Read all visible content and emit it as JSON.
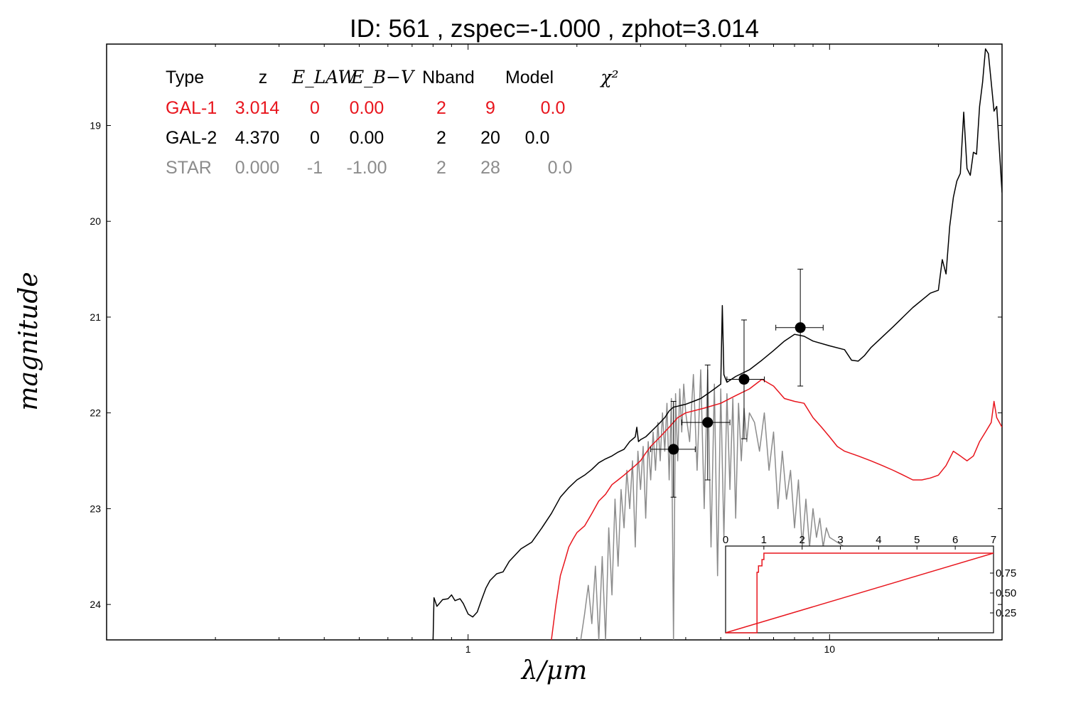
{
  "title": "ID:  561   , zspec=-1.000 , zphot=3.014",
  "chart_data": {
    "type": "line",
    "xlabel": "λ/μm",
    "ylabel": "magnitude",
    "xscale": "log",
    "xlim": [
      0.1,
      30
    ],
    "ylim": [
      24.37,
      18.15
    ],
    "x_ticks": [
      1,
      10
    ],
    "y_ticks": [
      19,
      20,
      21,
      22,
      23,
      24
    ],
    "colors": {
      "gal1": "#e8151d",
      "gal2": "#000000",
      "star": "#8c8c8c"
    },
    "table": {
      "headers": [
        "Type",
        "z",
        "E_LAW",
        "E_B−V",
        "Nband",
        "Model",
        "χ²"
      ],
      "rows": [
        {
          "type": "GAL-1",
          "z": "3.014",
          "elaw": "0",
          "ebv": "0.00",
          "nband": "2",
          "model": "9",
          "chi2": "0.0",
          "color": "#e8151d"
        },
        {
          "type": "GAL-2",
          "z": "4.370",
          "elaw": "0",
          "ebv": "0.00",
          "nband": "2",
          "model": "20",
          "chi2": "0.0",
          "color": "#000000"
        },
        {
          "type": "STAR",
          "z": "0.000",
          "elaw": "-1",
          "ebv": "-1.00",
          "nband": "2",
          "model": "28",
          "chi2": "0.0",
          "color": "#8c8c8c"
        }
      ]
    },
    "points": [
      {
        "x": 3.7,
        "y": 22.38,
        "xerr": [
          3.2,
          4.25
        ],
        "yerr": [
          21.88,
          22.88
        ]
      },
      {
        "x": 4.6,
        "y": 22.1,
        "xerr": [
          3.9,
          5.3
        ],
        "yerr": [
          21.5,
          22.7
        ]
      },
      {
        "x": 5.8,
        "y": 21.65,
        "xerr": [
          5.2,
          6.6
        ],
        "yerr": [
          21.03,
          22.27
        ]
      },
      {
        "x": 8.3,
        "y": 21.11,
        "xerr": [
          7.1,
          9.6
        ],
        "yerr": [
          20.5,
          21.72
        ]
      }
    ],
    "series": [
      {
        "id": "gal2",
        "x": [
          0.8,
          0.805,
          0.82,
          0.85,
          0.88,
          0.9,
          0.92,
          0.95,
          0.97,
          1.0,
          1.03,
          1.06,
          1.09,
          1.12,
          1.15,
          1.2,
          1.25,
          1.3,
          1.4,
          1.5,
          1.6,
          1.7,
          1.8,
          1.9,
          2.0,
          2.1,
          2.2,
          2.3,
          2.4,
          2.5,
          2.6,
          2.7,
          2.8,
          2.9,
          2.93,
          2.96,
          3.0,
          3.1,
          3.2,
          3.3,
          3.4,
          3.5,
          3.6,
          3.7,
          3.8,
          3.9,
          4.0,
          4.2,
          4.4,
          4.6,
          4.8,
          5.0,
          5.05,
          5.1,
          5.2,
          5.5,
          6.0,
          6.5,
          7.0,
          7.5,
          8.0,
          8.5,
          9.0,
          10.0,
          11.0,
          11.5,
          12.0,
          12.5,
          13.0,
          15.0,
          17.0,
          19.0,
          20.0,
          20.5,
          21.0,
          21.5,
          22.0,
          22.5,
          23.0,
          23.5,
          24.0,
          24.5,
          25.0,
          25.5,
          26.0,
          26.5,
          27.0,
          27.5,
          28.0,
          28.5,
          29.0,
          30.0
        ],
        "y": [
          24.37,
          23.93,
          24.02,
          23.95,
          23.94,
          23.9,
          23.96,
          23.94,
          23.99,
          24.1,
          24.13,
          24.08,
          23.95,
          23.83,
          23.75,
          23.68,
          23.66,
          23.55,
          23.42,
          23.35,
          23.2,
          23.05,
          22.88,
          22.78,
          22.7,
          22.65,
          22.59,
          22.52,
          22.48,
          22.45,
          22.41,
          22.38,
          22.3,
          22.25,
          22.15,
          22.3,
          22.28,
          22.25,
          22.2,
          22.15,
          22.1,
          22.05,
          21.98,
          21.94,
          21.93,
          21.92,
          21.91,
          21.88,
          21.85,
          21.8,
          21.75,
          21.7,
          20.88,
          21.6,
          21.68,
          21.62,
          21.55,
          21.45,
          21.35,
          21.25,
          21.18,
          21.2,
          21.25,
          21.3,
          21.34,
          21.45,
          21.46,
          21.4,
          21.32,
          21.1,
          20.9,
          20.75,
          20.72,
          20.4,
          20.55,
          20.05,
          19.75,
          19.58,
          19.5,
          18.86,
          19.45,
          19.52,
          19.28,
          19.3,
          18.8,
          18.55,
          18.2,
          18.25,
          18.55,
          18.85,
          18.8,
          19.7
        ]
      },
      {
        "id": "gal1",
        "x": [
          1.7,
          1.75,
          1.8,
          1.85,
          1.9,
          1.95,
          2.0,
          2.1,
          2.2,
          2.3,
          2.4,
          2.5,
          2.6,
          2.7,
          2.8,
          2.9,
          3.0,
          3.1,
          3.2,
          3.4,
          3.6,
          3.8,
          4.0,
          4.5,
          5.0,
          5.5,
          6.0,
          6.5,
          7.0,
          7.5,
          8.0,
          8.5,
          9.0,
          9.5,
          10.0,
          10.5,
          11.0,
          12.0,
          13.0,
          14.0,
          15.0,
          16.0,
          17.0,
          18.0,
          19.0,
          20.0,
          21.0,
          22.0,
          23.0,
          24.0,
          25.0,
          26.0,
          27.0,
          28.0,
          28.5,
          29.0,
          30.0
        ],
        "y": [
          24.37,
          24.0,
          23.7,
          23.55,
          23.4,
          23.32,
          23.25,
          23.18,
          23.05,
          22.92,
          22.85,
          22.75,
          22.7,
          22.65,
          22.6,
          22.55,
          22.5,
          22.42,
          22.35,
          22.25,
          22.15,
          22.05,
          22.0,
          21.95,
          21.9,
          21.82,
          21.75,
          21.65,
          21.72,
          21.85,
          21.88,
          21.9,
          22.05,
          22.15,
          22.25,
          22.35,
          22.4,
          22.45,
          22.5,
          22.55,
          22.6,
          22.65,
          22.7,
          22.7,
          22.68,
          22.65,
          22.55,
          22.4,
          22.45,
          22.5,
          22.45,
          22.3,
          22.2,
          22.1,
          21.88,
          22.05,
          22.15
        ]
      },
      {
        "id": "star",
        "x": [
          2.05,
          2.1,
          2.15,
          2.2,
          2.25,
          2.3,
          2.35,
          2.4,
          2.45,
          2.5,
          2.55,
          2.6,
          2.65,
          2.7,
          2.75,
          2.8,
          2.85,
          2.9,
          2.95,
          3.0,
          3.05,
          3.1,
          3.15,
          3.2,
          3.25,
          3.3,
          3.35,
          3.4,
          3.45,
          3.5,
          3.55,
          3.6,
          3.65,
          3.7,
          3.75,
          3.8,
          3.85,
          3.9,
          3.95,
          4.0,
          4.1,
          4.2,
          4.3,
          4.4,
          4.5,
          4.6,
          4.7,
          4.8,
          4.9,
          5.0,
          5.1,
          5.2,
          5.3,
          5.4,
          5.5,
          5.6,
          5.7,
          5.8,
          5.9,
          6.0,
          6.2,
          6.4,
          6.6,
          6.8,
          7.0,
          7.2,
          7.4,
          7.6,
          7.8,
          8.0,
          8.2,
          8.4,
          8.6,
          8.8,
          9.0,
          9.2,
          9.4,
          9.6,
          9.8,
          10.0,
          10.5,
          11.0,
          11.5,
          12.0
        ],
        "y": [
          24.37,
          24.1,
          23.8,
          24.2,
          23.6,
          24.37,
          23.5,
          24.37,
          23.2,
          23.9,
          22.9,
          23.6,
          22.8,
          23.2,
          22.6,
          23.0,
          22.5,
          23.4,
          22.4,
          22.8,
          22.35,
          23.1,
          22.3,
          22.7,
          22.2,
          22.6,
          22.1,
          22.5,
          22.0,
          22.4,
          21.9,
          22.7,
          21.85,
          24.37,
          21.8,
          22.5,
          21.75,
          22.2,
          21.7,
          22.0,
          22.3,
          21.6,
          22.6,
          21.55,
          23.0,
          21.55,
          23.4,
          21.7,
          23.7,
          21.75,
          23.3,
          21.8,
          22.8,
          21.85,
          23.1,
          21.9,
          22.5,
          21.95,
          22.3,
          22.0,
          22.1,
          22.4,
          22.0,
          22.6,
          22.2,
          23.0,
          22.4,
          22.9,
          22.6,
          23.2,
          22.7,
          23.4,
          22.9,
          23.4,
          23.0,
          23.3,
          23.1,
          23.4,
          23.2,
          23.3,
          23.35,
          23.4,
          23.5,
          23.6
        ]
      }
    ],
    "inset": {
      "xlim": [
        0,
        7
      ],
      "ylim": [
        0,
        1
      ],
      "x_ticks": [
        0,
        1,
        2,
        3,
        4,
        5,
        6,
        7
      ],
      "y_ticks": [
        "0.25",
        "0.50",
        "0.75"
      ],
      "pdf_x": [
        0,
        0.82,
        0.82,
        0.86,
        0.86,
        0.95,
        0.95,
        1.0,
        1.0,
        7.0
      ],
      "pdf_y": [
        0,
        0,
        0.76,
        0.76,
        0.84,
        0.84,
        0.92,
        0.92,
        1.0,
        1.0
      ],
      "cum_x": [
        0,
        7
      ],
      "cum_y": [
        0,
        1
      ]
    }
  }
}
